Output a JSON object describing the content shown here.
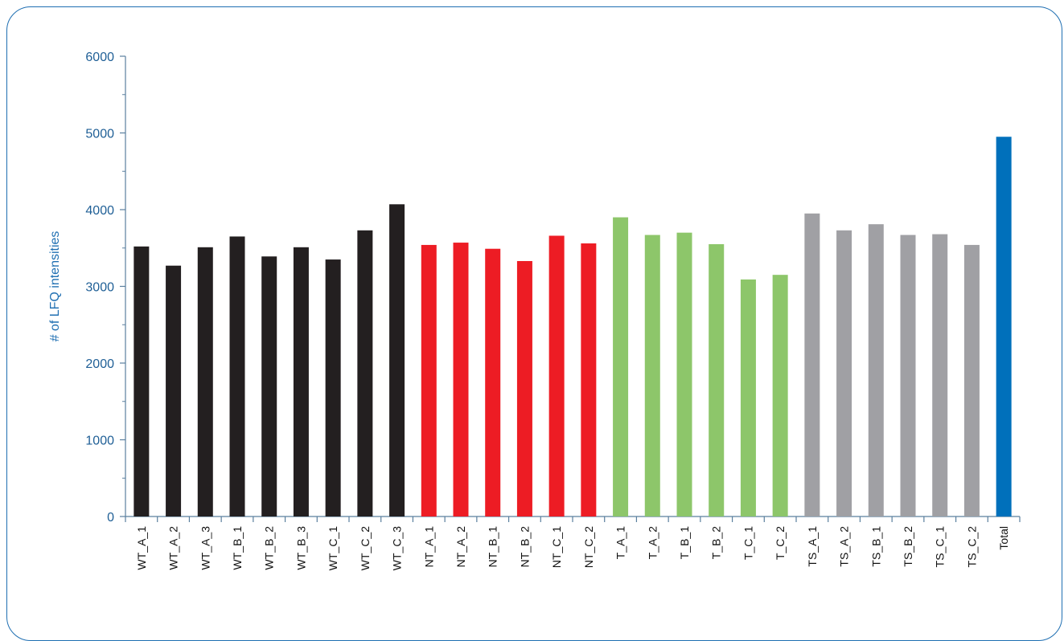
{
  "chart_data": {
    "type": "bar",
    "title": "",
    "xlabel": "",
    "ylabel": "# of LFQ intensities",
    "ylim": [
      0,
      6000
    ],
    "yticks": [
      0,
      1000,
      2000,
      3000,
      4000,
      5000,
      6000
    ],
    "grid": false,
    "categories": [
      "WT_A_1",
      "WT_A_2",
      "WT_A_3",
      "WT_B_1",
      "WT_B_2",
      "WT_B_3",
      "WT_C_1",
      "WT_C_2",
      "WT_C_3",
      "NT_A_1",
      "NT_A_2",
      "NT_B_1",
      "NT_B_2",
      "NT_C_1",
      "NT_C_2",
      "T_A_1",
      "T_A_2",
      "T_B_1",
      "T_B_2",
      "T_C_1",
      "T_C_2",
      "TS_A_1",
      "TS_A_2",
      "TS_B_1",
      "TS_B_2",
      "TS_C_1",
      "TS_C_2",
      "Total"
    ],
    "values": [
      3520,
      3270,
      3510,
      3650,
      3390,
      3510,
      3350,
      3730,
      4070,
      3540,
      3570,
      3490,
      3330,
      3660,
      3560,
      3900,
      3670,
      3700,
      3550,
      3090,
      3150,
      3950,
      3730,
      3810,
      3670,
      3680,
      3540,
      4950
    ],
    "bar_colors": [
      "#231f20",
      "#231f20",
      "#231f20",
      "#231f20",
      "#231f20",
      "#231f20",
      "#231f20",
      "#231f20",
      "#231f20",
      "#ed1c24",
      "#ed1c24",
      "#ed1c24",
      "#ed1c24",
      "#ed1c24",
      "#ed1c24",
      "#8dc66a",
      "#8dc66a",
      "#8dc66a",
      "#8dc66a",
      "#8dc66a",
      "#8dc66a",
      "#a0a0a4",
      "#a0a0a4",
      "#a0a0a4",
      "#a0a0a4",
      "#a0a0a4",
      "#a0a0a4",
      "#0070bb"
    ],
    "axis_color": "#5a7f9e",
    "frame_color": "#1f6fb2"
  }
}
